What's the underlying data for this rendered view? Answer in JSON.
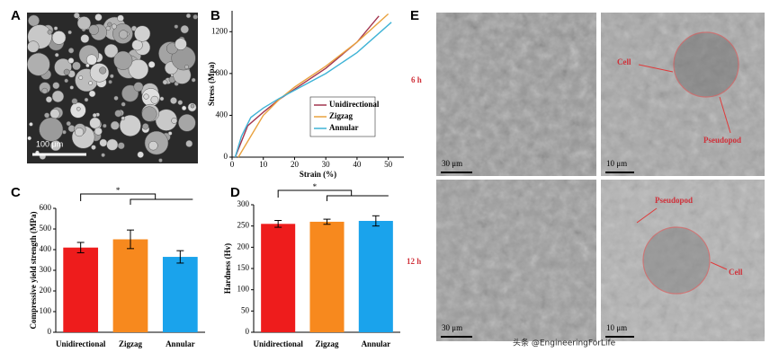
{
  "panel_a": {
    "label": "A",
    "scale_bar": "100 μm"
  },
  "chart_data": [
    {
      "type": "line",
      "label": "B",
      "y_label": "Stress (Mpa)",
      "x_label": "Strain (%)",
      "xlim": [
        0,
        55
      ],
      "xticks": [
        0,
        10,
        20,
        30,
        40,
        50
      ],
      "ylim": [
        0,
        1400
      ],
      "yticks": [
        0,
        400,
        800,
        1200
      ],
      "series": [
        {
          "name": "Unidirectional",
          "color": "#a3354f",
          "x": [
            1,
            5,
            10,
            15,
            20,
            30,
            40,
            47
          ],
          "values": [
            0,
            300,
            430,
            550,
            650,
            850,
            1100,
            1350
          ]
        },
        {
          "name": "Zigzag",
          "color": "#e9a23f",
          "x": [
            2,
            5,
            10,
            15,
            20,
            30,
            40,
            50
          ],
          "values": [
            0,
            150,
            400,
            550,
            670,
            870,
            1100,
            1370
          ]
        },
        {
          "name": "Annular",
          "color": "#3fb3d6",
          "x": [
            1,
            3,
            6,
            10,
            15,
            20,
            30,
            40,
            51
          ],
          "values": [
            0,
            200,
            380,
            470,
            560,
            640,
            800,
            1000,
            1290
          ]
        }
      ]
    },
    {
      "type": "bar",
      "label": "C",
      "y_label": "Compressive  yield strength (MPa)",
      "categories": [
        "Unidirectional",
        "Zigzag",
        "Annular"
      ],
      "values": [
        410,
        450,
        365
      ],
      "errors": [
        25,
        45,
        30
      ],
      "colors": [
        "#ee1c1c",
        "#f7891e",
        "#1aa3ec"
      ],
      "ylim": [
        0,
        600
      ],
      "yticks": [
        0,
        100,
        200,
        300,
        400,
        500,
        600
      ],
      "annotation": "*"
    },
    {
      "type": "bar",
      "label": "D",
      "y_label": "Hardness (Hv)",
      "categories": [
        "Unidirectional",
        "Zigzag",
        "Annular"
      ],
      "values": [
        255,
        260,
        262
      ],
      "errors": [
        8,
        6,
        12
      ],
      "colors": [
        "#ee1c1c",
        "#f7891e",
        "#1aa3ec"
      ],
      "ylim": [
        0,
        300
      ],
      "yticks": [
        0,
        50,
        100,
        150,
        200,
        250,
        300
      ],
      "annotation": "*"
    }
  ],
  "panel_e": {
    "label": "E",
    "rows": [
      {
        "time": "6 h",
        "scale_bars": [
          "30 μm",
          "10 μm"
        ],
        "annotations": [
          "Cell",
          "Pseudopod"
        ]
      },
      {
        "time": "12 h",
        "scale_bars": [
          "30 μm",
          "10 μm"
        ],
        "annotations": [
          "Pseudopod",
          "Cell"
        ]
      }
    ]
  },
  "watermark": "头条 @EngineeringForLife"
}
